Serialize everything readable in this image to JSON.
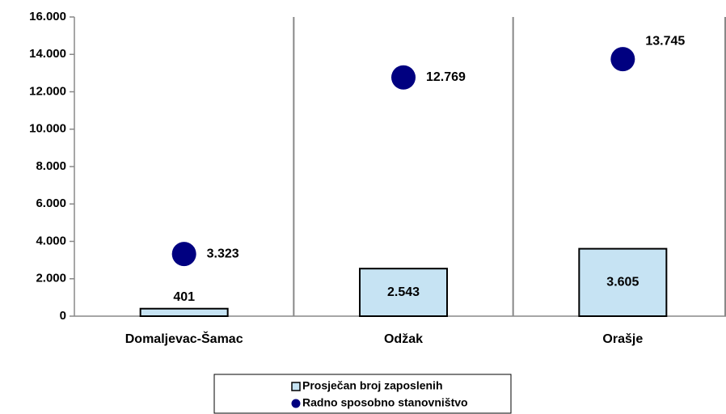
{
  "chart_data": {
    "type": "bar",
    "categories": [
      "Domaljevac-Šamac",
      "Odžak",
      "Orašje"
    ],
    "series": [
      {
        "name": "Prosječan broj zaposlenih",
        "type": "bar",
        "color": "#c6e3f3",
        "values": [
          401,
          2543,
          3605
        ],
        "value_labels": [
          "401",
          "2.543",
          "3.605"
        ]
      },
      {
        "name": "Radno sposobno stanovništvo",
        "type": "scatter",
        "color": "#000080",
        "values": [
          3323,
          12769,
          13745
        ],
        "value_labels": [
          "3.323",
          "12.769",
          "13.745"
        ]
      }
    ],
    "ylim": [
      0,
      16000
    ],
    "yticks": [
      0,
      {
        "value": 2000,
        "label": "2.000"
      },
      {
        "value": 4000,
        "label": "4.000"
      },
      {
        "value": 6000,
        "label": "6.000"
      },
      {
        "value": 8000,
        "label": "8.000"
      },
      {
        "value": 10000,
        "label": "10.000"
      },
      {
        "value": 12000,
        "label": "12.000"
      },
      {
        "value": 14000,
        "label": "14.000"
      },
      {
        "value": 16000,
        "label": "16.000"
      }
    ],
    "legend": "bottom"
  }
}
